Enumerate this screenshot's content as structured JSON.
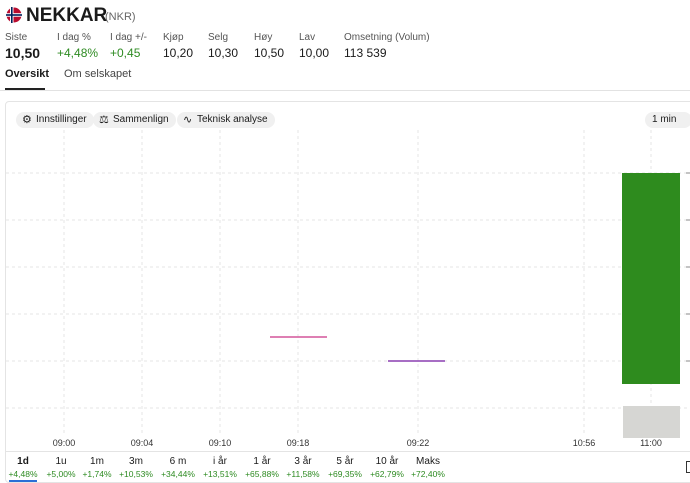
{
  "header": {
    "title": "NEKKAR",
    "ticker": "(NKR)"
  },
  "stats": [
    {
      "label": "Siste",
      "value": "10,50"
    },
    {
      "label": "I dag %",
      "value": "+4,48%"
    },
    {
      "label": "I dag +/-",
      "value": "+0,45"
    },
    {
      "label": "Kjøp",
      "value": "10,20"
    },
    {
      "label": "Selg",
      "value": "10,30"
    },
    {
      "label": "Høy",
      "value": "10,50"
    },
    {
      "label": "Lav",
      "value": "10,00"
    },
    {
      "label": "Omsetning (Volum)",
      "value": "113 539"
    }
  ],
  "tabs": [
    "Oversikt",
    "Om selskapet"
  ],
  "toolbar": {
    "buttons": [
      "Innstillinger",
      "Sammenlign",
      "Teknisk analyse"
    ],
    "interval": "1 min"
  },
  "chart": {
    "x_labels": [
      "09:00",
      "09:04",
      "09:10",
      "09:18",
      "09:22",
      "10:56",
      "11:00"
    ]
  },
  "periods": [
    {
      "label": "1d",
      "change": "+4,48%"
    },
    {
      "label": "1u",
      "change": "+5,00%"
    },
    {
      "label": "1m",
      "change": "+1,74%"
    },
    {
      "label": "3m",
      "change": "+10,53%"
    },
    {
      "label": "6 m",
      "change": "+34,44%"
    },
    {
      "label": "i år",
      "change": "+13,51%"
    },
    {
      "label": "1 år",
      "change": "+65,88%"
    },
    {
      "label": "3 år",
      "change": "+11,58%"
    },
    {
      "label": "5 år",
      "change": "+69,35%"
    },
    {
      "label": "10 år",
      "change": "+62,79%"
    },
    {
      "label": "Maks",
      "change": "+72,40%"
    }
  ]
}
